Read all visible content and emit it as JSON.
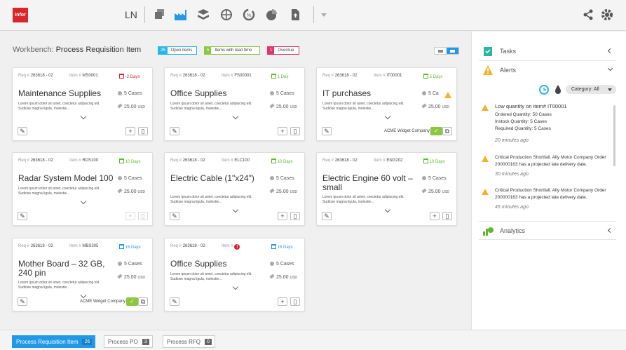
{
  "header": {
    "logo": "infor",
    "app_name": "LN",
    "icons": [
      "stack-icon",
      "factory-icon",
      "layers-icon",
      "globe-icon",
      "refresh-icon",
      "pie-icon",
      "upload-file-icon",
      "share-icon",
      "gear-icon"
    ]
  },
  "workbench": {
    "title_prefix": "Workbench:",
    "title": "Process Requisition Item",
    "badges": [
      {
        "count": "26",
        "label": "Open items",
        "color": "#2ab6e8"
      },
      {
        "count": "5",
        "label": "Items with lead time",
        "color": "#8dc63f"
      },
      {
        "count": "1",
        "label": "Overdue",
        "color": "#e0346a"
      }
    ]
  },
  "labels": {
    "req": "Req #",
    "item": "Item #"
  },
  "cards": [
    {
      "req": "263618 - 02",
      "item": "MS0001",
      "days": "-2 Days",
      "days_color": "#d8262c",
      "title": "Maintenance Supplies",
      "desc": "Lorem ipsum dolor sit amet, coectetur adipiscing elit. Sudiose magna ligula, molestie...",
      "cases": "5 Cases",
      "price": "25.00",
      "currency": "USD",
      "vendor": ""
    },
    {
      "req": "263618 - 02",
      "item": "FS00001",
      "days": "1 Day",
      "days_color": "#5cb82e",
      "title": "Office Supplies",
      "desc": "Lorem ipsum dolor sit amet, coectetur adipiscing elit. Sudiose magna ligula, molestie...",
      "cases": "5 Cases",
      "price": "25.00",
      "currency": "USD",
      "vendor": ""
    },
    {
      "req": "263618 - 02",
      "item": "IT00001",
      "days": "5 Days",
      "days_color": "#5cb82e",
      "title": "IT purchases",
      "desc": "Lorem ipsum dolor sit amet, coectetur adipiscing elit. Sudiose magna ligula, molestie...",
      "cases": "5 Ca",
      "price": "25.00",
      "currency": "USD",
      "vendor": "ACME Widget Company"
    },
    {
      "req": "263618 - 02",
      "item": "RDS100",
      "days": "10 Days",
      "days_color": "#5cb82e",
      "title": "Radar System Model 100",
      "desc": "Lorem ipsum dolor sit amet, coectetur adipiscing elit. Sudiose magna ligula, molestie...",
      "cases": "5 Cases",
      "price": "25.00",
      "currency": "USD",
      "vendor": ""
    },
    {
      "req": "263618 - 02",
      "item": "ELC100",
      "days": "10 Days",
      "days_color": "#5cb82e",
      "title": "Electric Cable (1\"x24\")",
      "desc": "Lorem ipsum dolor sit amet, coectetur adipiscing elit. Sudiose magna ligula, molestie...",
      "cases": "5 Cases",
      "price": "25.00",
      "currency": "USD",
      "vendor": ""
    },
    {
      "req": "263618 - 02",
      "item": "ENG202",
      "days": "10 Days",
      "days_color": "#5cb82e",
      "title": "Electric Engine 60 volt – small",
      "desc": "Lorem ipsum dolor sit amet, coectetur adipiscing elit. Sudiose magna ligula, molestie...",
      "cases": "5 Cases",
      "price": "25.00",
      "currency": "USD",
      "vendor": ""
    },
    {
      "req": "263618 - 02",
      "item": "MBS305",
      "days": "15 Days",
      "days_color": "#2199e8",
      "title": "Mother Board – 32 GB, 240 pin",
      "desc": "Lorem ipsum dolor sit amet, coectetur adipiscing elit. Sudiose magna ligula, molestie...",
      "cases": "5 Cases",
      "price": "25.00",
      "currency": "USD",
      "vendor": "ACME Widget Company"
    },
    {
      "req": "263618 - 02",
      "item": "",
      "days": "15 Days",
      "days_color": "#2199e8",
      "title": "Office Supplies",
      "desc": "Lorem ipsum dolor sit amet, coectetur adipiscing elit. Sudiose magna ligula, molestie...",
      "cases": "5 Cases",
      "price": "25.00",
      "currency": "USD",
      "vendor": ""
    }
  ],
  "panel": {
    "tasks": "Tasks",
    "alerts": "Alerts",
    "category": "Category: All",
    "analytics": "Analytics",
    "alert_items": [
      {
        "title": "Low quantity on item# IT00001",
        "l1": "Ordered Quantity: 50 Cases",
        "l2": "Instock Quantity: 5 Cases",
        "l3": "Required Quantity: 5 Cases",
        "time": "20 minutes ago"
      },
      {
        "text": "Critical Production Shortfall. Ally Motor Company Order 200000163 has a projected late delivery date.",
        "time": "30 minutes ago"
      },
      {
        "text": "Critical Production Shortfall. Ally Motor Company Order 200000163 has a projected late delivery date.",
        "time": "45 minutes ago"
      }
    ]
  },
  "bottom_tabs": [
    {
      "label": "Process Requisition Item",
      "count": "26"
    },
    {
      "label": "Process PO",
      "count": "3"
    },
    {
      "label": "Process RFQ",
      "count": "0"
    }
  ]
}
